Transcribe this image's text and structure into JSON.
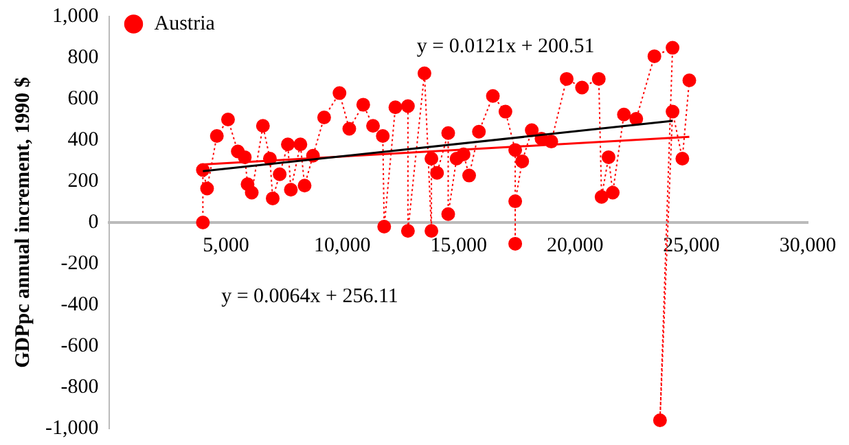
{
  "chart_data": {
    "type": "line",
    "ylabel": "GDPpc annual increment, 1990 $",
    "xlim": [
      0,
      30000
    ],
    "xticks": [
      {
        "value": 5000,
        "label": "5,000"
      },
      {
        "value": 10000,
        "label": "10,000"
      },
      {
        "value": 15000,
        "label": "15,000"
      },
      {
        "value": 20000,
        "label": "20,000"
      },
      {
        "value": 25000,
        "label": "25,000"
      },
      {
        "value": 30000,
        "label": "30,000"
      }
    ],
    "ylim": [
      -1000,
      1000
    ],
    "yticks": [
      {
        "value": -1000,
        "label": "-1,000"
      },
      -800,
      -600,
      -400,
      -200,
      0,
      200,
      400,
      600,
      800,
      {
        "value": 1000,
        "label": "1,000"
      }
    ],
    "grid": false,
    "legend": "top left",
    "annotations": [
      "y = 0.0121x + 200.51",
      "y = 0.0064x + 256.11"
    ],
    "series": [
      {
        "name": "Austria",
        "color": "#ff0000",
        "marker": "circle",
        "line_style": "dotted",
        "x": [
          4010,
          4010,
          4190,
          4610,
          5090,
          5510,
          5810,
          5930,
          6110,
          6590,
          6890,
          7010,
          7310,
          7660,
          7790,
          8200,
          8380,
          8740,
          9220,
          9880,
          10300,
          10900,
          11320,
          11740,
          11800,
          12280,
          12820,
          12820,
          13530,
          13830,
          13830,
          14070,
          14550,
          14550,
          14910,
          15210,
          15450,
          15870,
          16470,
          17010,
          17430,
          17430,
          17430,
          17730,
          18140,
          18560,
          18980,
          19640,
          20300,
          21020,
          21140,
          21440,
          21620,
          22100,
          22630,
          23410,
          24190,
          23650,
          24190,
          24610,
          24910
        ],
        "values": [
          0,
          255,
          165,
          420,
          500,
          345,
          317,
          186,
          145,
          469,
          310,
          117,
          234,
          379,
          159,
          379,
          179,
          324,
          510,
          628,
          455,
          572,
          469,
          420,
          -20,
          559,
          565,
          -41,
          724,
          -41,
          310,
          241,
          434,
          41,
          310,
          331,
          228,
          441,
          614,
          538,
          352,
          -103,
          103,
          297,
          448,
          407,
          393,
          697,
          655,
          697,
          124,
          317,
          145,
          524,
          503,
          807,
          848,
          -960,
          538,
          310,
          690
        ]
      },
      {
        "color": "#000000",
        "marker": "none",
        "x": [
          4010,
          24190
        ],
        "values": [
          249,
          493
        ]
      },
      {
        "color": "#ff0000",
        "marker": "none",
        "x": [
          4010,
          24910
        ],
        "values": [
          282,
          416
        ]
      }
    ]
  }
}
